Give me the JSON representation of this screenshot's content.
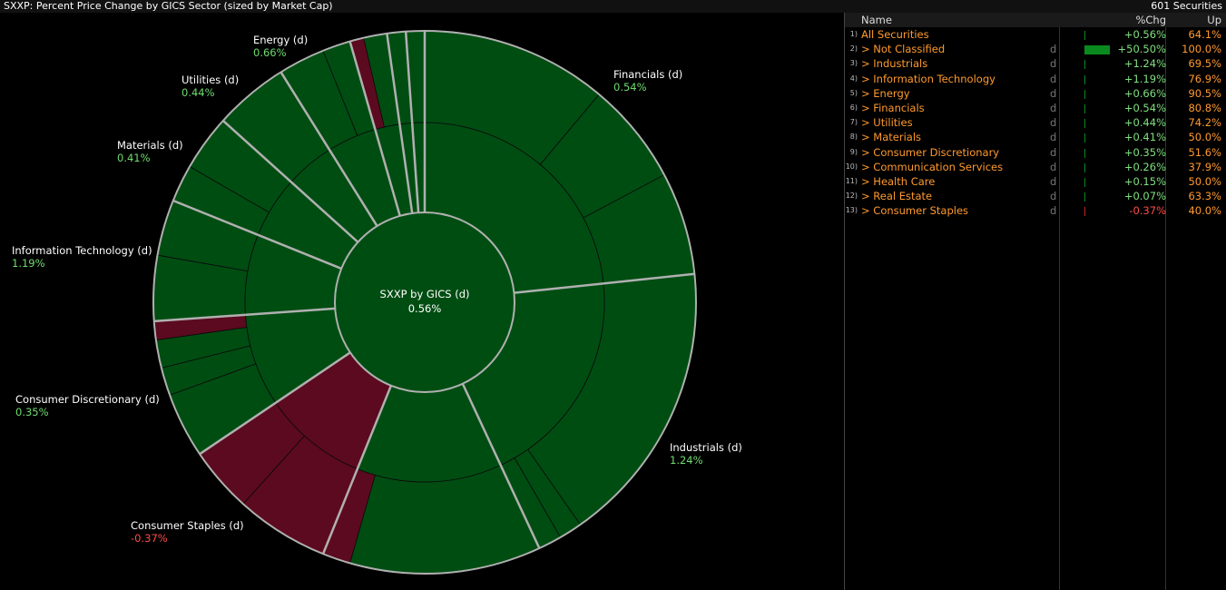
{
  "header": {
    "title": "SXXP: Percent Price Change by GICS Sector (sized by Market Cap)",
    "count": "601 Securities"
  },
  "sunburst": {
    "center": {
      "title": "SXXP by GICS (d)",
      "value": "0.56%"
    },
    "labels": [
      {
        "name": "Energy (d)",
        "value": "0.66%"
      },
      {
        "name": "Utilities (d)",
        "value": "0.44%"
      },
      {
        "name": "Materials (d)",
        "value": "0.41%"
      },
      {
        "name": "Information Technology (d)",
        "value": "1.19%"
      },
      {
        "name": "Consumer Discretionary (d)",
        "value": "0.35%"
      },
      {
        "name": "Consumer Staples (d)",
        "value": "-0.37%"
      },
      {
        "name": "Financials (d)",
        "value": "0.54%"
      },
      {
        "name": "Industrials (d)",
        "value": "1.24%"
      }
    ]
  },
  "table": {
    "header": [
      "Name",
      "%Chg",
      "Up"
    ],
    "rows": [
      {
        "index": "1)",
        "name": "All Securities",
        "flag": "",
        "chg": "+0.56%",
        "up": "64.1%"
      },
      {
        "index": "2)",
        "name": "> Not Classified",
        "flag": "d",
        "chg": "+50.50%",
        "up": "100.0%"
      },
      {
        "index": "3)",
        "name": "> Industrials",
        "flag": "d",
        "chg": "+1.24%",
        "up": "69.5%"
      },
      {
        "index": "4)",
        "name": "> Information Technology",
        "flag": "d",
        "chg": "+1.19%",
        "up": "76.9%"
      },
      {
        "index": "5)",
        "name": "> Energy",
        "flag": "d",
        "chg": "+0.66%",
        "up": "90.5%"
      },
      {
        "index": "6)",
        "name": "> Financials",
        "flag": "d",
        "chg": "+0.54%",
        "up": "80.8%"
      },
      {
        "index": "7)",
        "name": "> Utilities",
        "flag": "d",
        "chg": "+0.44%",
        "up": "74.2%"
      },
      {
        "index": "8)",
        "name": "> Materials",
        "flag": "d",
        "chg": "+0.41%",
        "up": "50.0%"
      },
      {
        "index": "9)",
        "name": "> Consumer Discretionary",
        "flag": "d",
        "chg": "+0.35%",
        "up": "51.6%"
      },
      {
        "index": "10)",
        "name": "> Communication Services",
        "flag": "d",
        "chg": "+0.26%",
        "up": "37.9%"
      },
      {
        "index": "11)",
        "name": "> Health Care",
        "flag": "d",
        "chg": "+0.15%",
        "up": "50.0%"
      },
      {
        "index": "12)",
        "name": "> Real Estate",
        "flag": "d",
        "chg": "+0.07%",
        "up": "63.3%"
      },
      {
        "index": "13)",
        "name": "> Consumer Staples",
        "flag": "d",
        "chg": "-0.37%",
        "up": "40.0%"
      }
    ]
  }
}
